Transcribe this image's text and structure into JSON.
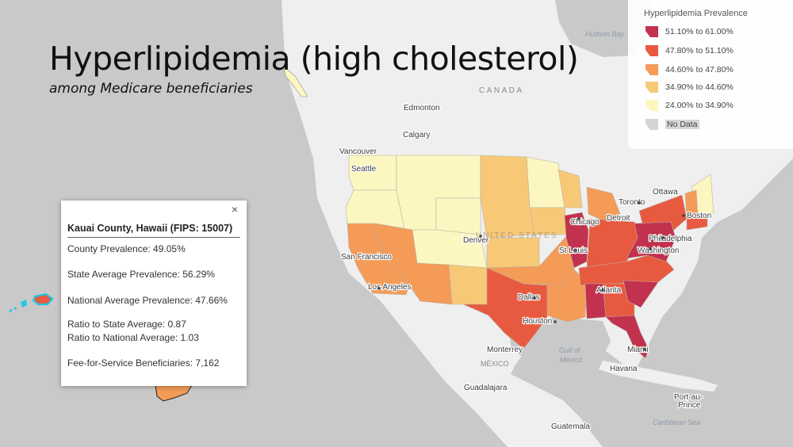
{
  "title": "Hyperlipidemia (high cholesterol)",
  "subtitle": "among Medicare beneficiaries",
  "legend": {
    "title": "Hyperlipidemia Prevalence",
    "items": [
      {
        "label": "51.10% to 61.00%",
        "color": "#c2314e"
      },
      {
        "label": "47.80% to 51.10%",
        "color": "#e85a40"
      },
      {
        "label": "44.60% to 47.80%",
        "color": "#f49b57"
      },
      {
        "label": "34.90% to 44.60%",
        "color": "#f7c977"
      },
      {
        "label": "24.00% to 34.90%",
        "color": "#fcf6c1"
      },
      {
        "label": "No Data",
        "color": "#d4d4d4"
      }
    ]
  },
  "popup": {
    "close_icon": "×",
    "header": "Kauai County, Hawaii (FIPS: 15007)",
    "county_prevalence": "County Prevalence: 49.05%",
    "state_avg": "State Average Prevalence: 56.29%",
    "national_avg": "National Average Prevalence: 47.66%",
    "ratio_state": "Ratio to State Average: 0.87",
    "ratio_national": "Ratio to National Average: 1.03",
    "ffs": "Fee-for-Service Beneficiaries: 7,162"
  },
  "map_labels": {
    "hudson_bay": "Hudson Bay",
    "canada": "CANADA",
    "edmonton": "Edmonton",
    "calgary": "Calgary",
    "vancouver": "Vancouver",
    "seattle": "Seattle",
    "ottawa": "Ottawa",
    "toronto": "Toronto",
    "detroit": "Detroit",
    "chicago": "Chicago",
    "boston": "Boston",
    "philadelphia": "Philadelphia",
    "washington": "Washington",
    "denver": "Denver",
    "san_francisco": "San Francisco",
    "los_angeles": "Los Angeles",
    "st_louis": "St Louis",
    "dallas": "Dallas",
    "atlanta": "Atlanta",
    "houston": "Houston",
    "miami": "Miami",
    "monterrey": "Monterrey",
    "mexico": "MÉXICO",
    "gulf_of": "Gulf of",
    "mexico_water": "Mexico",
    "havana": "Havana",
    "guadalajara": "Guadalajara",
    "port_au": "Port-au-",
    "prince": "Prince",
    "caribbean_sea": "Caribbean Sea",
    "guatemala": "Guatemala",
    "united_states": "UNITED STATES"
  },
  "highlighted_county": "Kauai County, Hawaii",
  "icons": {
    "close": "close-icon",
    "swatch": "legend-swatch-icon"
  }
}
